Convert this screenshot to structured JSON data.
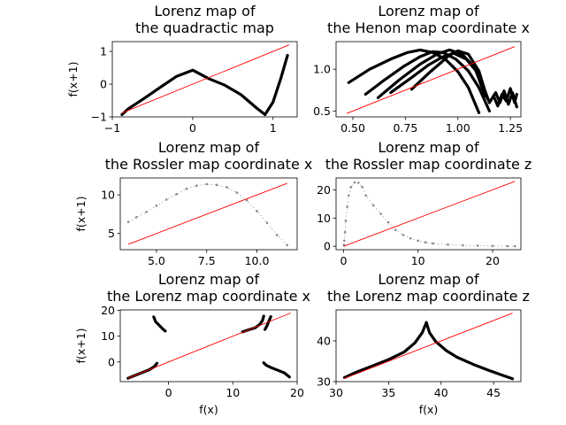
{
  "chart_data": [
    {
      "type": "scatter",
      "title": [
        "Lorenz map of",
        "the quadractic map"
      ],
      "xlabel": "",
      "ylabel": "f(x+1)",
      "xlim": [
        -1.0,
        1.3
      ],
      "ylim": [
        -1.0,
        1.3
      ],
      "xticks": [
        {
          "v": -1,
          "label": "−1"
        },
        {
          "v": 0,
          "label": "0"
        },
        {
          "v": 1,
          "label": "1"
        }
      ],
      "yticks": [
        {
          "v": -1,
          "label": "−1"
        },
        {
          "v": 0,
          "label": "0"
        },
        {
          "v": 1,
          "label": "1"
        }
      ],
      "identity_line": [
        -0.88,
        1.2
      ],
      "marker": "line",
      "series": [
        {
          "x": [
            -0.88,
            -0.8,
            -0.6,
            -0.4,
            -0.2,
            0.0,
            0.2,
            0.4,
            0.6,
            0.8,
            0.9
          ],
          "y": [
            -0.93,
            -0.75,
            -0.43,
            -0.09,
            0.24,
            0.43,
            0.17,
            -0.03,
            -0.32,
            -0.74,
            -0.93
          ]
        },
        {
          "x": [
            0.9,
            1.0,
            1.1,
            1.18
          ],
          "y": [
            -0.93,
            -0.55,
            0.2,
            0.88
          ]
        }
      ]
    },
    {
      "type": "scatter",
      "title": [
        "Lorenz map of",
        "the Henon map coordinate x"
      ],
      "xlabel": "",
      "ylabel": "",
      "xlim": [
        0.42,
        1.3
      ],
      "ylim": [
        0.43,
        1.33
      ],
      "xticks": [
        {
          "v": 0.5,
          "label": "0.50"
        },
        {
          "v": 0.75,
          "label": "0.75"
        },
        {
          "v": 1.0,
          "label": "1.00"
        },
        {
          "v": 1.25,
          "label": "1.25"
        }
      ],
      "yticks": [
        {
          "v": 0.5,
          "label": "0.5"
        },
        {
          "v": 1.0,
          "label": "1.0"
        }
      ],
      "identity_line": [
        0.47,
        1.27
      ],
      "marker": "line",
      "series": [
        {
          "x": [
            0.48,
            0.58,
            0.68,
            0.76,
            0.82,
            0.88,
            0.94,
            1.0,
            1.05,
            1.1
          ],
          "y": [
            0.84,
            1.0,
            1.12,
            1.2,
            1.23,
            1.2,
            1.12,
            0.97,
            0.78,
            0.48
          ]
        },
        {
          "x": [
            0.56,
            0.65,
            0.74,
            0.82,
            0.88,
            0.93,
            0.99,
            1.05,
            1.1,
            1.15
          ],
          "y": [
            0.7,
            0.87,
            1.03,
            1.15,
            1.21,
            1.2,
            1.12,
            0.98,
            0.78,
            0.5
          ]
        },
        {
          "x": [
            0.62,
            0.72,
            0.82,
            0.9,
            0.96,
            1.02,
            1.08,
            1.13
          ],
          "y": [
            0.66,
            0.87,
            1.06,
            1.18,
            1.23,
            1.18,
            1.02,
            0.68
          ]
        },
        {
          "x": [
            0.68,
            0.78,
            0.86,
            0.93,
            0.98,
            1.04,
            1.1,
            1.15
          ],
          "y": [
            0.72,
            0.9,
            1.05,
            1.15,
            1.19,
            1.12,
            0.94,
            0.6
          ]
        },
        {
          "x": [
            0.78,
            0.86,
            0.92,
            0.96,
            1.0,
            1.05,
            1.1,
            1.14
          ],
          "y": [
            0.76,
            0.95,
            1.08,
            1.17,
            1.22,
            1.18,
            0.98,
            0.65
          ]
        },
        {
          "x": [
            1.15,
            1.18,
            1.2,
            1.22,
            1.24,
            1.26,
            1.28
          ],
          "y": [
            0.6,
            0.72,
            0.6,
            0.74,
            0.58,
            0.72,
            0.55
          ]
        },
        {
          "x": [
            1.17,
            1.19,
            1.21,
            1.23,
            1.25,
            1.27,
            1.28
          ],
          "y": [
            0.68,
            0.56,
            0.7,
            0.62,
            0.77,
            0.6,
            0.7
          ]
        }
      ]
    },
    {
      "type": "scatter",
      "title": [
        "Lorenz map of",
        "the Rossler map coordinate x"
      ],
      "xlabel": "",
      "ylabel": "f(x+1)",
      "xlim": [
        3.2,
        12.0
      ],
      "ylim": [
        2.9,
        12.2
      ],
      "xticks": [
        {
          "v": 5.0,
          "label": "5.0"
        },
        {
          "v": 7.5,
          "label": "7.5"
        },
        {
          "v": 10.0,
          "label": "10.0"
        }
      ],
      "yticks": [
        {
          "v": 5,
          "label": "5"
        },
        {
          "v": 10,
          "label": "10"
        }
      ],
      "identity_line": [
        3.6,
        11.5
      ],
      "marker": "dots",
      "series": [
        {
          "x": [
            3.6,
            4.0,
            4.5,
            5.0,
            5.5,
            6.0,
            6.5,
            7.0,
            7.5,
            8.0,
            8.5,
            9.0,
            9.5,
            10.0,
            10.5,
            11.0,
            11.5
          ],
          "y": [
            6.5,
            7.1,
            7.8,
            8.6,
            9.4,
            10.1,
            10.8,
            11.2,
            11.4,
            11.3,
            11.0,
            10.3,
            9.3,
            7.9,
            6.4,
            4.8,
            3.5
          ]
        }
      ]
    },
    {
      "type": "scatter",
      "title": [
        "Lorenz map of",
        "the Rossler map coordinate z"
      ],
      "xlabel": "",
      "ylabel": "",
      "xlim": [
        -1.0,
        23.8
      ],
      "ylim": [
        -1.2,
        24.2
      ],
      "xticks": [
        {
          "v": 0,
          "label": "0"
        },
        {
          "v": 10,
          "label": "10"
        },
        {
          "v": 20,
          "label": "20"
        }
      ],
      "yticks": [
        {
          "v": 0,
          "label": "0"
        },
        {
          "v": 10,
          "label": "10"
        },
        {
          "v": 20,
          "label": "20"
        }
      ],
      "identity_line": [
        0.0,
        23.0
      ],
      "marker": "dots",
      "series": [
        {
          "x": [
            0.05,
            0.1,
            0.2,
            0.3,
            0.5,
            0.7,
            1.0,
            1.5,
            2.0,
            2.5,
            3.0,
            4.0,
            5.0,
            6.0,
            7.0,
            8.0,
            9.0,
            10.0,
            11.0,
            12.0,
            14.0,
            16.0,
            18.0,
            20.0,
            22.0,
            23.0
          ],
          "y": [
            0.5,
            2.0,
            5.0,
            9.0,
            14.0,
            18.0,
            21.0,
            22.6,
            22.5,
            21.0,
            18.0,
            14.5,
            11.5,
            8.5,
            5.8,
            4.0,
            2.8,
            2.0,
            1.4,
            1.0,
            0.6,
            0.35,
            0.2,
            0.1,
            0.05,
            0.05
          ]
        }
      ]
    },
    {
      "type": "scatter",
      "title": [
        "Lorenz map of",
        "the Lorenz map coordinate x"
      ],
      "xlabel": "f(x)",
      "ylabel": "f(x+1)",
      "xlim": [
        -7.5,
        20.0
      ],
      "ylim": [
        -7.6,
        20.2
      ],
      "xticks": [
        {
          "v": 0,
          "label": "0"
        },
        {
          "v": 10,
          "label": "10"
        },
        {
          "v": 20,
          "label": "20"
        }
      ],
      "yticks": [
        {
          "v": 0,
          "label": "0"
        },
        {
          "v": 10,
          "label": "10"
        },
        {
          "v": 20,
          "label": "20"
        }
      ],
      "identity_line": [
        -6.3,
        19.0
      ],
      "marker": "line",
      "series": [
        {
          "x": [
            -6.3,
            -5.0,
            -4.0,
            -3.0,
            -2.2,
            -1.8
          ],
          "y": [
            -6.3,
            -5.0,
            -4.0,
            -3.0,
            -1.8,
            -0.5
          ]
        },
        {
          "x": [
            -2.3,
            -2.0,
            -1.6,
            -1.2,
            -0.8,
            -0.5
          ],
          "y": [
            17.5,
            15.6,
            14.6,
            13.6,
            12.6,
            12.0
          ]
        },
        {
          "x": [
            11.5,
            12.5,
            13.5,
            14.2,
            14.6,
            14.8
          ],
          "y": [
            11.7,
            12.5,
            13.3,
            14.6,
            16.0,
            17.8
          ]
        },
        {
          "x": [
            15.0,
            15.3,
            15.6,
            15.9
          ],
          "y": [
            12.6,
            14.0,
            15.8,
            17.6
          ]
        },
        {
          "x": [
            14.8,
            15.2,
            16.0,
            17.0,
            18.0,
            18.8
          ],
          "y": [
            -0.3,
            -1.3,
            -2.2,
            -3.2,
            -4.2,
            -5.8
          ]
        }
      ]
    },
    {
      "type": "scatter",
      "title": [
        "Lorenz map of",
        "the Lorenz map coordinate z"
      ],
      "xlabel": "f(x)",
      "ylabel": "",
      "xlim": [
        30.0,
        47.6
      ],
      "ylim": [
        30.0,
        47.6
      ],
      "xticks": [
        {
          "v": 30,
          "label": "30"
        },
        {
          "v": 35,
          "label": "35"
        },
        {
          "v": 40,
          "label": "40"
        },
        {
          "v": 45,
          "label": "45"
        }
      ],
      "yticks": [
        {
          "v": 30,
          "label": "30"
        },
        {
          "v": 40,
          "label": "40"
        }
      ],
      "identity_line": [
        30.7,
        46.8
      ],
      "marker": "line",
      "series": [
        {
          "x": [
            30.8,
            32.0,
            33.5,
            35.0,
            36.5,
            37.5,
            38.2,
            38.6
          ],
          "y": [
            31.0,
            32.4,
            33.9,
            35.4,
            37.3,
            39.5,
            42.0,
            44.5
          ]
        },
        {
          "x": [
            38.6,
            38.9,
            39.5,
            40.5,
            41.5,
            43.0,
            44.5,
            45.8,
            46.8
          ],
          "y": [
            44.5,
            42.0,
            39.8,
            37.6,
            36.0,
            34.3,
            32.8,
            31.6,
            30.7
          ]
        }
      ]
    }
  ]
}
